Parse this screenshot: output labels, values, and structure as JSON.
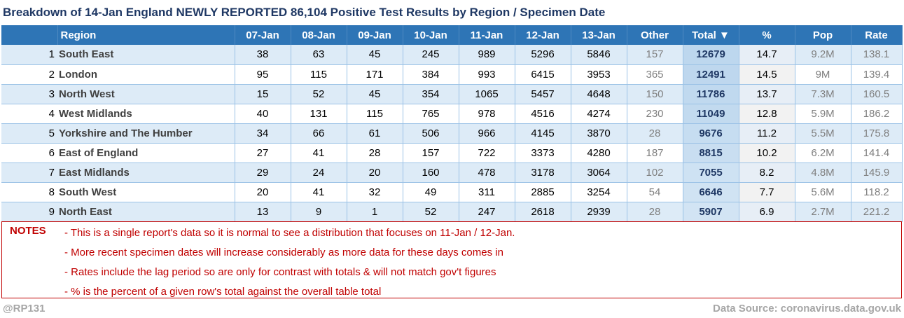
{
  "title": "Breakdown of 14-Jan England NEWLY REPORTED 86,104 Positive Test Results by Region / Specimen Date",
  "colors": {
    "header_bg": "#2e75b6",
    "band_light": "#ddebf7",
    "total_highlight": "#bdd7ee",
    "title_text": "#1f3864",
    "notes_red": "#c00000",
    "footer_grey": "#a6a6a6"
  },
  "chart_data": {
    "type": "table",
    "title": "Breakdown of 14-Jan England NEWLY REPORTED 86,104 Positive Test Results by Region / Specimen Date",
    "columns": [
      "",
      "Region",
      "07-Jan",
      "08-Jan",
      "09-Jan",
      "10-Jan",
      "11-Jan",
      "12-Jan",
      "13-Jan",
      "Other",
      "Total ▼",
      "%",
      "Pop",
      "Rate"
    ],
    "sort_indicator": "▼",
    "rows": [
      {
        "rank": "1",
        "region": "South East",
        "d07": "38",
        "d08": "63",
        "d09": "45",
        "d10": "245",
        "d11": "989",
        "d12": "5296",
        "d13": "5846",
        "other": "157",
        "total": "12679",
        "pct": "14.7",
        "pop": "9.2M",
        "rate": "138.1"
      },
      {
        "rank": "2",
        "region": "London",
        "d07": "95",
        "d08": "115",
        "d09": "171",
        "d10": "384",
        "d11": "993",
        "d12": "6415",
        "d13": "3953",
        "other": "365",
        "total": "12491",
        "pct": "14.5",
        "pop": "9M",
        "rate": "139.4"
      },
      {
        "rank": "3",
        "region": "North West",
        "d07": "15",
        "d08": "52",
        "d09": "45",
        "d10": "354",
        "d11": "1065",
        "d12": "5457",
        "d13": "4648",
        "other": "150",
        "total": "11786",
        "pct": "13.7",
        "pop": "7.3M",
        "rate": "160.5"
      },
      {
        "rank": "4",
        "region": "West Midlands",
        "d07": "40",
        "d08": "131",
        "d09": "115",
        "d10": "765",
        "d11": "978",
        "d12": "4516",
        "d13": "4274",
        "other": "230",
        "total": "11049",
        "pct": "12.8",
        "pop": "5.9M",
        "rate": "186.2"
      },
      {
        "rank": "5",
        "region": "Yorkshire and The Humber",
        "d07": "34",
        "d08": "66",
        "d09": "61",
        "d10": "506",
        "d11": "966",
        "d12": "4145",
        "d13": "3870",
        "other": "28",
        "total": "9676",
        "pct": "11.2",
        "pop": "5.5M",
        "rate": "175.8"
      },
      {
        "rank": "6",
        "region": "East of England",
        "d07": "27",
        "d08": "41",
        "d09": "28",
        "d10": "157",
        "d11": "722",
        "d12": "3373",
        "d13": "4280",
        "other": "187",
        "total": "8815",
        "pct": "10.2",
        "pop": "6.2M",
        "rate": "141.4"
      },
      {
        "rank": "7",
        "region": "East Midlands",
        "d07": "29",
        "d08": "24",
        "d09": "20",
        "d10": "160",
        "d11": "478",
        "d12": "3178",
        "d13": "3064",
        "other": "102",
        "total": "7055",
        "pct": "8.2",
        "pop": "4.8M",
        "rate": "145.9"
      },
      {
        "rank": "8",
        "region": "South West",
        "d07": "20",
        "d08": "41",
        "d09": "32",
        "d10": "49",
        "d11": "311",
        "d12": "2885",
        "d13": "3254",
        "other": "54",
        "total": "6646",
        "pct": "7.7",
        "pop": "5.6M",
        "rate": "118.2"
      },
      {
        "rank": "9",
        "region": "North East",
        "d07": "13",
        "d08": "9",
        "d09": "1",
        "d10": "52",
        "d11": "247",
        "d12": "2618",
        "d13": "2939",
        "other": "28",
        "total": "5907",
        "pct": "6.9",
        "pop": "2.7M",
        "rate": "221.2"
      }
    ],
    "total_heat": [
      12679,
      12491,
      11786,
      11049,
      9676,
      8815,
      7055,
      6646,
      5907
    ]
  },
  "notes": {
    "label": "NOTES",
    "items": [
      "- This is a single report's data so it is normal to see a distribution that focuses on 11-Jan / 12-Jan.",
      "- More recent specimen dates will increase considerably as more data for these days comes in",
      "- Rates include the lag period so are only for contrast with totals & will not match gov't figures",
      "- % is the percent of a given row's total against the overall table total"
    ]
  },
  "footer": {
    "handle": "@RP131",
    "source": "Data Source: coronavirus.data.gov.uk"
  }
}
